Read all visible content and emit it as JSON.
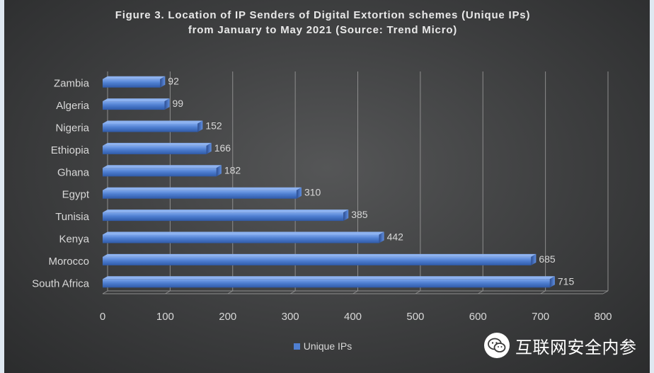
{
  "chart_data": {
    "type": "bar",
    "orientation": "horizontal",
    "title_lines": [
      "Figure 3. Location of IP Senders of Digital Extortion schemes (Unique IPs)",
      "from January to May 2021 (Source: Trend Micro)"
    ],
    "categories": [
      "Zambia",
      "Algeria",
      "Nigeria",
      "Ethiopia",
      "Ghana",
      "Egypt",
      "Tunisia",
      "Kenya",
      "Morocco",
      "South Africa"
    ],
    "series": [
      {
        "name": "Unique IPs",
        "values": [
          92,
          99,
          152,
          166,
          182,
          310,
          385,
          442,
          685,
          715
        ],
        "color": "#4f7fd1"
      }
    ],
    "xlim": [
      0,
      800
    ],
    "xticks": [
      0,
      100,
      200,
      300,
      400,
      500,
      600,
      700,
      800
    ],
    "grid": "vertical",
    "legend": "bottom",
    "data_labels": true
  },
  "colors": {
    "background": "#3d3e3f",
    "bar": "#4f7fd1",
    "grid": "#8a8a8a",
    "text": "#d8d8d8"
  },
  "watermark": {
    "icon": "wechat-icon",
    "text": "互联网安全内参"
  }
}
